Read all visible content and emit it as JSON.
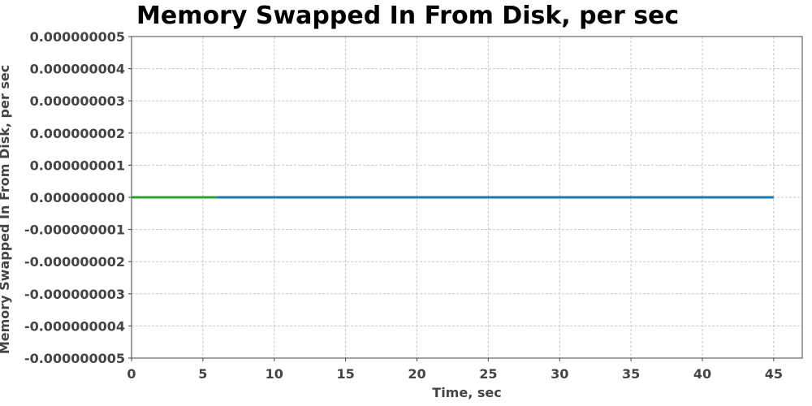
{
  "chart_data": {
    "type": "line",
    "title": "Memory Swapped In From Disk, per sec",
    "xlabel": "Time, sec",
    "ylabel": "Memory Swapped In From Disk, per sec",
    "xlim": [
      0,
      47
    ],
    "ylim": [
      -5e-09,
      5e-09
    ],
    "x_ticks": [
      0,
      5,
      10,
      15,
      20,
      25,
      30,
      35,
      40,
      45
    ],
    "y_ticks": [
      "0.000000005",
      "0.000000004",
      "0.000000003",
      "0.000000002",
      "0.000000001",
      "0.000000000",
      "-0.000000001",
      "-0.000000002",
      "-0.000000003",
      "-0.000000004",
      "-0.000000005"
    ],
    "grid": true,
    "series": [
      {
        "color": "#1f77b4",
        "x": [
          6,
          45
        ],
        "y": [
          0,
          0
        ]
      },
      {
        "color": "#2ca02c",
        "x": [
          0,
          6
        ],
        "y": [
          0,
          0
        ]
      }
    ]
  }
}
